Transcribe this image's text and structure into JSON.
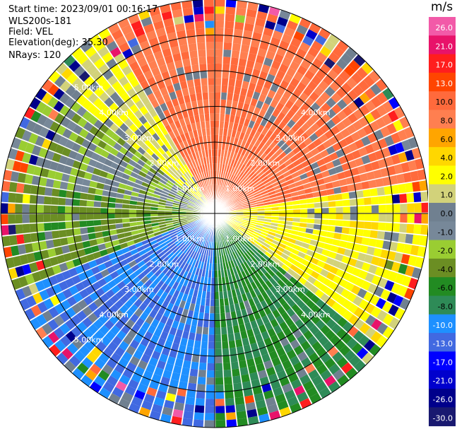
{
  "info": {
    "start_time": "Start time: 2023/09/01 00:16:17",
    "instrument": "WLS200s-181",
    "field": "Field: VEL",
    "elevation": "Elevation(deg): 35.30",
    "nrays": "NRays: 120"
  },
  "colorbar": {
    "unit": "m/s",
    "levels": [
      {
        "label": "26.0",
        "color": "#f25aa8"
      },
      {
        "label": "21.0",
        "color": "#e8136a"
      },
      {
        "label": "17.0",
        "color": "#ff1e1e"
      },
      {
        "label": "13.0",
        "color": "#ff4500"
      },
      {
        "label": "10.0",
        "color": "#ff6a3c"
      },
      {
        "label": "8.0",
        "color": "#ff7f50"
      },
      {
        "label": "6.0",
        "color": "#ffa500"
      },
      {
        "label": "4.0",
        "color": "#ffd700"
      },
      {
        "label": "2.0",
        "color": "#ffff00"
      },
      {
        "label": "1.0",
        "color": "#d2d27a"
      },
      {
        "label": "0.0",
        "color": "#708090"
      },
      {
        "label": "-1.0",
        "color": "#778899"
      },
      {
        "label": "-2.0",
        "color": "#9acd32"
      },
      {
        "label": "-4.0",
        "color": "#6b8e23"
      },
      {
        "label": "-6.0",
        "color": "#228b22"
      },
      {
        "label": "-8.0",
        "color": "#2e8b57"
      },
      {
        "label": "-10.0",
        "color": "#1e90ff"
      },
      {
        "label": "-13.0",
        "color": "#4169e1"
      },
      {
        "label": "-17.0",
        "color": "#0000ff"
      },
      {
        "label": "-21.0",
        "color": "#0000cd"
      },
      {
        "label": "-26.0",
        "color": "#00008b"
      },
      {
        "label": "-30.0",
        "color": "#191970"
      }
    ]
  },
  "chart_data": {
    "type": "heatmap",
    "subtype": "polar-ppi",
    "field": "VEL",
    "units": "m/s",
    "n_rays": 120,
    "max_range_km": 6.0,
    "range_rings_km": [
      1.0,
      2.0,
      3.0,
      4.0,
      5.0,
      6.0
    ],
    "ring_labels": [
      {
        "text": "1.00km",
        "quadrant": "NE"
      },
      {
        "text": "1.00km",
        "quadrant": "NW"
      },
      {
        "text": "1.00km",
        "quadrant": "SE"
      },
      {
        "text": "1.00km",
        "quadrant": "SW"
      },
      {
        "text": "2.00km",
        "quadrant": "NE"
      },
      {
        "text": "2.00km",
        "quadrant": "NW"
      },
      {
        "text": "2.00km",
        "quadrant": "SE"
      },
      {
        "text": "2.00km",
        "quadrant": "SW"
      },
      {
        "text": "3.00km",
        "quadrant": "NE"
      },
      {
        "text": "3.00km",
        "quadrant": "NW"
      },
      {
        "text": "3.00km",
        "quadrant": "SE"
      },
      {
        "text": "3.00km",
        "quadrant": "SW"
      },
      {
        "text": "4.00km",
        "quadrant": "NE"
      },
      {
        "text": "4.00km",
        "quadrant": "NW"
      },
      {
        "text": "4.00km",
        "quadrant": "SE"
      },
      {
        "text": "4.00km",
        "quadrant": "SW"
      },
      {
        "text": "5.00km",
        "quadrant": "NW"
      },
      {
        "text": "5.00km",
        "quadrant": "SW"
      }
    ],
    "sectors_approx": [
      {
        "azimuth_from_deg": 330,
        "azimuth_to_deg": 360,
        "value_ms": 10.0
      },
      {
        "azimuth_from_deg": 0,
        "azimuth_to_deg": 80,
        "value_ms": 10.0
      },
      {
        "azimuth_from_deg": 80,
        "azimuth_to_deg": 130,
        "value_ms": 3.0
      },
      {
        "azimuth_from_deg": 130,
        "azimuth_to_deg": 180,
        "value_ms": -6.0
      },
      {
        "azimuth_from_deg": 180,
        "azimuth_to_deg": 250,
        "value_ms": -10.0
      },
      {
        "azimuth_from_deg": 250,
        "azimuth_to_deg": 280,
        "value_ms": -3.0
      },
      {
        "azimuth_from_deg": 280,
        "azimuth_to_deg": 310,
        "value_ms": -1.0
      },
      {
        "azimuth_from_deg": 310,
        "azimuth_to_deg": 330,
        "value_ms": 2.0
      }
    ]
  }
}
